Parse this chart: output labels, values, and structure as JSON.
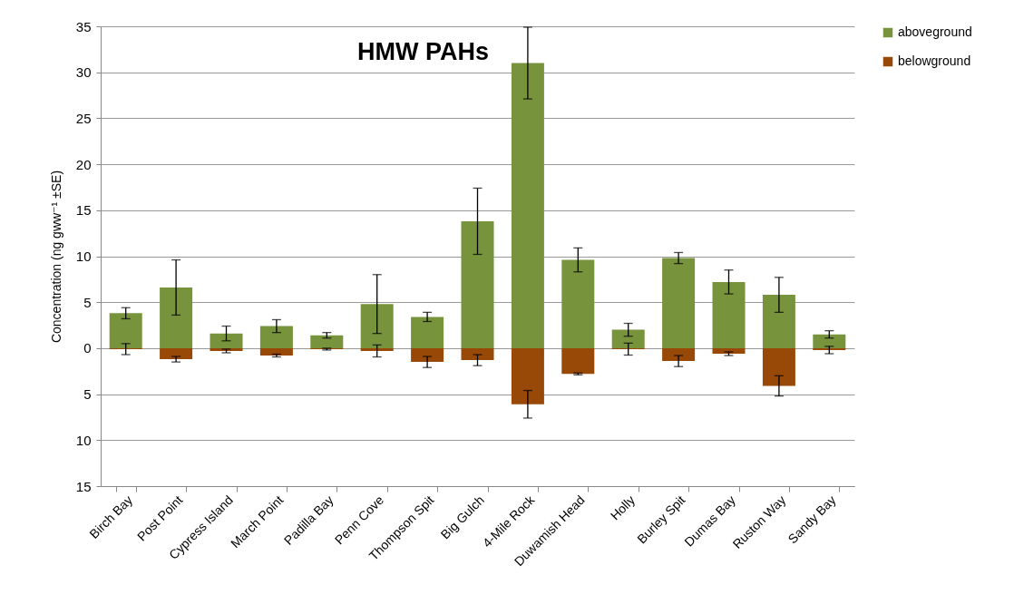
{
  "chart_data": {
    "type": "bar",
    "title": "HMW PAHs",
    "ylabel": "Concentration (ng gww⁻¹ ±SE)",
    "categories": [
      "Birch Bay",
      "Post Point",
      "Cypress Island",
      "March Point",
      "Padilla Bay",
      "Penn Cove",
      "Thompson Spit",
      "Big Gulch",
      "4-Mile Rock",
      "Duwamish Head",
      "Holly",
      "Burley Spit",
      "Dumas Bay",
      "Ruston Way",
      "Sandy Bay"
    ],
    "series": [
      {
        "name": "aboveground",
        "color": "#77933c",
        "values": [
          3.8,
          6.6,
          1.6,
          2.4,
          1.4,
          4.8,
          3.4,
          13.8,
          31.0,
          9.6,
          2.0,
          9.8,
          7.2,
          5.8,
          1.5
        ],
        "errors": [
          0.6,
          3.0,
          0.8,
          0.7,
          0.3,
          3.2,
          0.5,
          3.6,
          3.9,
          1.3,
          0.7,
          0.6,
          1.3,
          1.9,
          0.4
        ]
      },
      {
        "name": "belowground",
        "color": "#984807",
        "values": [
          -0.1,
          -1.2,
          -0.3,
          -0.8,
          -0.1,
          -0.3,
          -1.5,
          -1.3,
          -6.1,
          -2.8,
          -0.1,
          -1.4,
          -0.6,
          -4.1,
          -0.2
        ],
        "errors": [
          0.6,
          0.3,
          0.2,
          0.15,
          0.1,
          0.65,
          0.6,
          0.6,
          1.5,
          0.1,
          0.65,
          0.6,
          0.2,
          1.1,
          0.4
        ]
      }
    ],
    "stacked": true,
    "ylim": [
      -15,
      35
    ],
    "yticks": [
      {
        "value": -15,
        "label": "15"
      },
      {
        "value": -10,
        "label": "10"
      },
      {
        "value": -5,
        "label": "5"
      },
      0,
      5,
      10,
      15,
      20,
      25,
      30,
      35
    ],
    "grid": "y",
    "legend": "top right"
  }
}
